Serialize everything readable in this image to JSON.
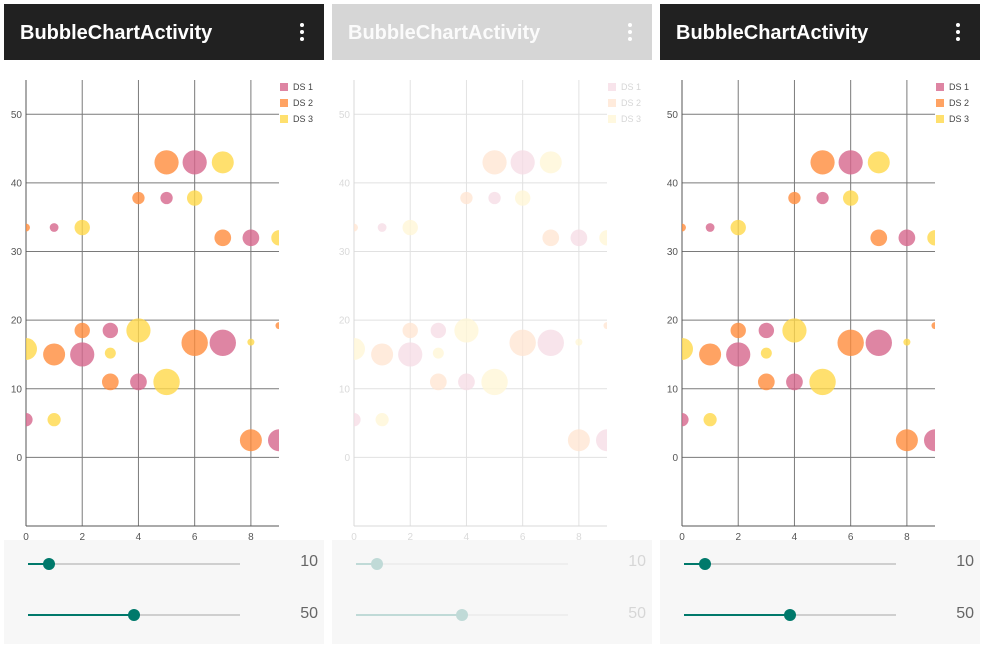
{
  "app": {
    "title": "BubbleChartActivity",
    "overflow_icon": "more-vert-icon"
  },
  "controls": {
    "seekbar_x": {
      "value": 10,
      "max": 100,
      "label": "10"
    },
    "seekbar_y": {
      "value": 50,
      "max": 100,
      "label": "50"
    }
  },
  "colors": {
    "ds1": "#d6668c",
    "ds2": "#ff8c3c",
    "ds3": "#ffd84a",
    "seek_accent": "#00796b",
    "toolbar": "#212121"
  },
  "chart_data": {
    "type": "scatter",
    "title": "",
    "xlabel": "",
    "ylabel": "",
    "xlim": [
      0,
      9
    ],
    "ylim": [
      -10,
      55
    ],
    "x_ticks": [
      "0",
      "2",
      "4",
      "6",
      "8"
    ],
    "y_ticks": [
      "0",
      "10",
      "20",
      "30",
      "40",
      "50"
    ],
    "grid": true,
    "legend_position": "top-right",
    "series": [
      {
        "name": "DS 1",
        "color": "#d6668c",
        "points": [
          {
            "x": 0,
            "y": 5.5,
            "size": 0.3
          },
          {
            "x": 1,
            "y": 33.5,
            "size": 0.2
          },
          {
            "x": 2,
            "y": 15,
            "size": 0.55
          },
          {
            "x": 3,
            "y": 18.5,
            "size": 0.35
          },
          {
            "x": 4,
            "y": 11,
            "size": 0.38
          },
          {
            "x": 5,
            "y": 37.8,
            "size": 0.28
          },
          {
            "x": 6,
            "y": 43,
            "size": 0.55
          },
          {
            "x": 7,
            "y": 16.7,
            "size": 0.6
          },
          {
            "x": 8,
            "y": 32,
            "size": 0.38
          },
          {
            "x": 9,
            "y": 2.5,
            "size": 0.5
          }
        ]
      },
      {
        "name": "DS 2",
        "color": "#ff8c3c",
        "points": [
          {
            "x": 0,
            "y": 33.5,
            "size": 0.18
          },
          {
            "x": 1,
            "y": 15,
            "size": 0.5
          },
          {
            "x": 2,
            "y": 18.5,
            "size": 0.35
          },
          {
            "x": 3,
            "y": 11,
            "size": 0.38
          },
          {
            "x": 4,
            "y": 37.8,
            "size": 0.28
          },
          {
            "x": 5,
            "y": 43,
            "size": 0.55
          },
          {
            "x": 6,
            "y": 16.7,
            "size": 0.6
          },
          {
            "x": 7,
            "y": 32,
            "size": 0.38
          },
          {
            "x": 8,
            "y": 2.5,
            "size": 0.5
          },
          {
            "x": 9,
            "y": 19.2,
            "size": 0.1
          }
        ]
      },
      {
        "name": "DS 3",
        "color": "#ffd84a",
        "points": [
          {
            "x": 0,
            "y": 15.8,
            "size": 0.5
          },
          {
            "x": 1,
            "y": 5.5,
            "size": 0.3
          },
          {
            "x": 2,
            "y": 33.5,
            "size": 0.35
          },
          {
            "x": 3,
            "y": 15.2,
            "size": 0.25
          },
          {
            "x": 4,
            "y": 18.5,
            "size": 0.55
          },
          {
            "x": 5,
            "y": 11,
            "size": 0.6
          },
          {
            "x": 6,
            "y": 37.8,
            "size": 0.35
          },
          {
            "x": 7,
            "y": 43,
            "size": 0.5
          },
          {
            "x": 8,
            "y": 16.8,
            "size": 0.12
          },
          {
            "x": 9,
            "y": 32,
            "size": 0.35
          }
        ]
      }
    ]
  }
}
